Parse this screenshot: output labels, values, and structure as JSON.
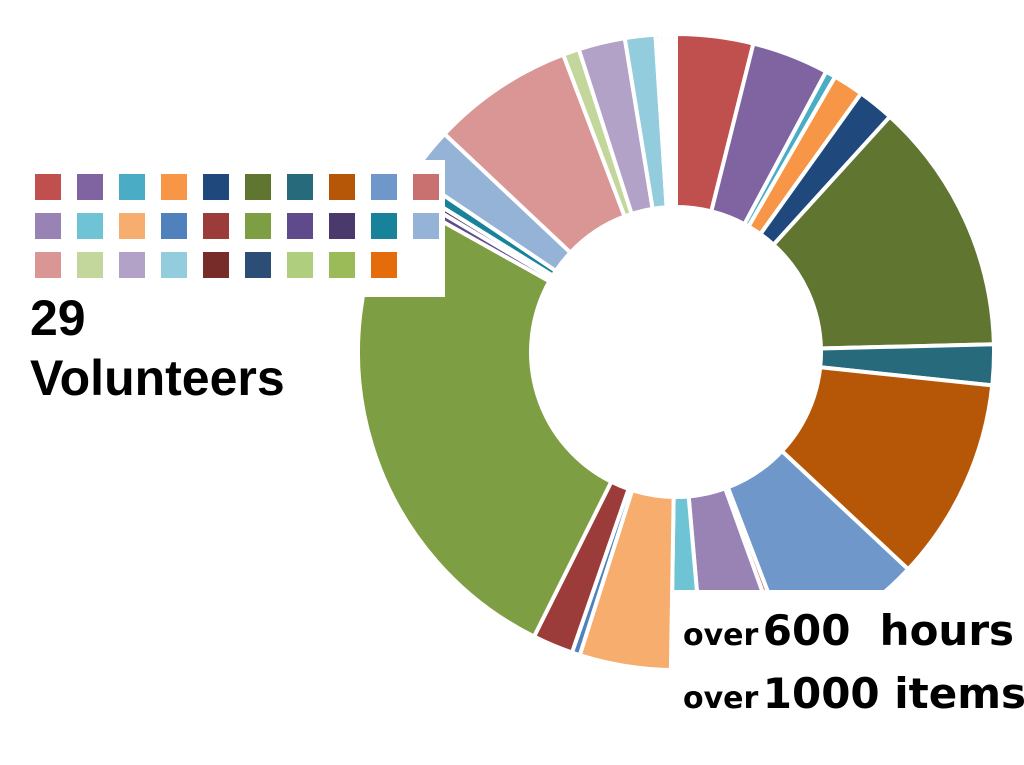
{
  "chart_data": {
    "type": "donut",
    "categories": [
      null,
      null,
      null,
      null,
      null,
      null,
      null,
      null,
      null,
      null,
      null,
      null,
      null,
      null,
      null,
      null,
      null,
      null,
      null,
      null,
      null,
      null,
      null,
      null,
      null,
      null,
      null,
      null,
      null
    ],
    "values": [
      3.8,
      3.8,
      0.5,
      1.5,
      1.8,
      12.5,
      2.0,
      10.0,
      7.0,
      0.3,
      4.0,
      1.6,
      4.5,
      0.4,
      2.0,
      25.0,
      0.4,
      0.3,
      0.6,
      2.5,
      7.0,
      0.8,
      2.3,
      1.5,
      0.2,
      0.2,
      0.2,
      0.2,
      0.2
    ],
    "colors": [
      "#c0504d",
      "#8064a2",
      "#4bacc6",
      "#f79646",
      "#1f497d",
      "#5f7530",
      "#276a7c",
      "#b65708",
      "#6f97c9",
      "#c97070",
      "#9983b5",
      "#6ec3d5",
      "#f6ad6d",
      "#4f81bd",
      "#9b3b3a",
      "#7d9e42",
      "#5f4b8b",
      "#4a3a6b",
      "#17829a",
      "#95b3d7",
      "#d99694",
      "#c3d69b",
      "#b3a2c7",
      "#93cddd",
      "#772c2a",
      "#2c4d75",
      "#b0cf7e",
      "#9bbb59",
      "#e46c0a"
    ],
    "annotations": [
      "29",
      "Volunteers",
      "over",
      "600  hours",
      "over",
      "1000 items"
    ]
  }
}
